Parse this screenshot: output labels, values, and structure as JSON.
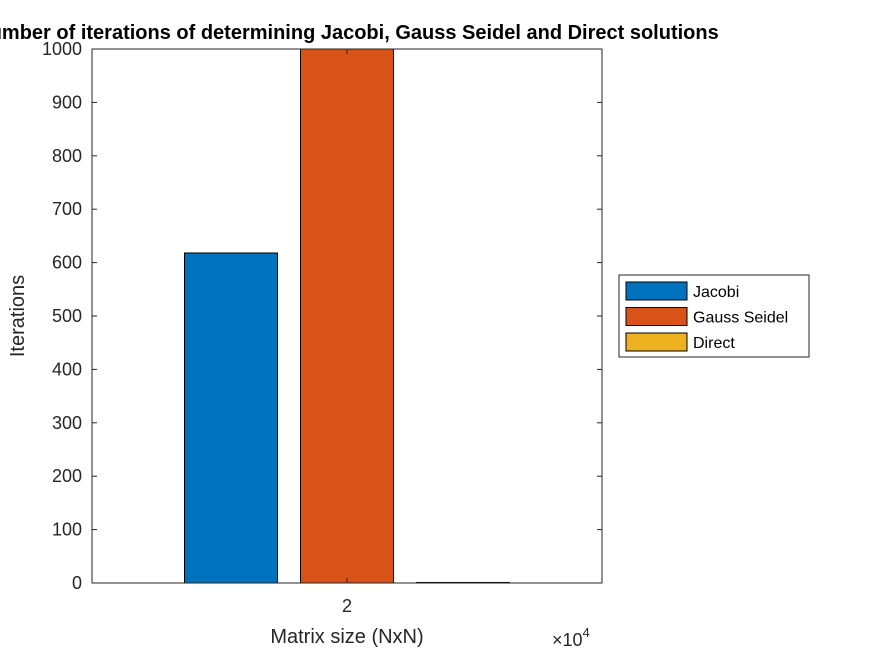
{
  "chart_data": {
    "type": "bar",
    "title": "Number of iterations of determining Jacobi, Gauss Seidel and Direct solutions",
    "xlabel": "Matrix size (NxN)",
    "ylabel": "Iterations",
    "categories": [
      "2"
    ],
    "x_exponent_label": "×10",
    "x_exponent_power": "4",
    "ylim": [
      0,
      1000
    ],
    "yticks": [
      "0",
      "100",
      "200",
      "300",
      "400",
      "500",
      "600",
      "700",
      "800",
      "900",
      "1000"
    ],
    "grid": false,
    "legend_position": "outside-right",
    "series": [
      {
        "name": "Jacobi",
        "values": [
          618
        ],
        "color": "#0072BD"
      },
      {
        "name": "Gauss Seidel",
        "values": [
          1000
        ],
        "color": "#D95319"
      },
      {
        "name": "Direct",
        "values": [
          1
        ],
        "color": "#EDB120"
      }
    ]
  }
}
